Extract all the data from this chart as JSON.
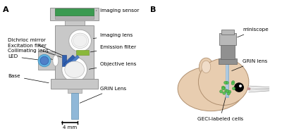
{
  "background_color": "#ffffff",
  "panel_A_label": "A",
  "panel_B_label": "B",
  "figsize": [
    4.0,
    1.86
  ],
  "dpi": 100,
  "scale_bar_text": "4 mm",
  "colors": {
    "sensor_green": "#3a9a50",
    "emission_green": "#8ab83a",
    "led_blue_dark": "#3060b0",
    "led_blue_mid": "#5080c8",
    "led_cyan": "#60b0e0",
    "led_light": "#a8d0f0",
    "grin_blue": "#90b8d8",
    "body_gray": "#c8c8c8",
    "body_mid": "#b0b0b0",
    "body_outline": "#888888",
    "body_dark": "#989898",
    "mouse_skin": "#e8cdb0",
    "mouse_outline": "#b09070",
    "mouse_inner": "#f0dcc8",
    "miniscope_gray": "#909090",
    "miniscope_light": "#b8b8b8",
    "white": "#ffffff"
  }
}
